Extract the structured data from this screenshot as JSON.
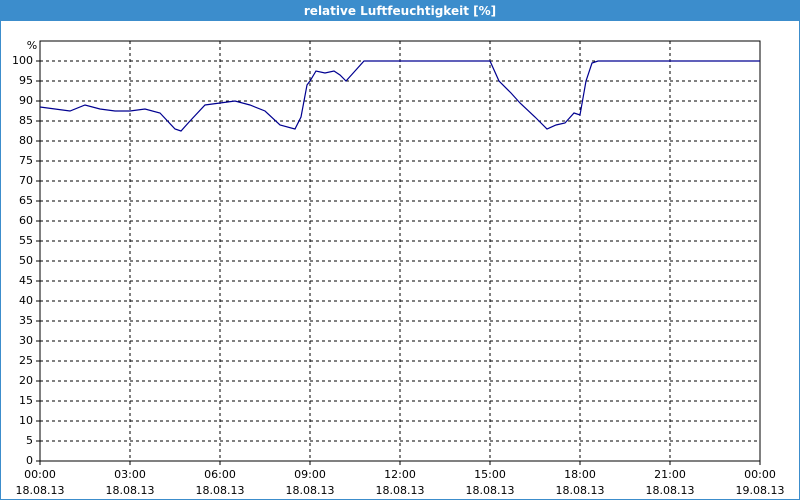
{
  "chart_data": {
    "type": "line",
    "title": "relative Luftfeuchtigkeit [%]",
    "y_unit": "%",
    "color": "#000090",
    "grid": true,
    "x": [
      0,
      0.5,
      1,
      1.5,
      2,
      2.5,
      3,
      3.5,
      4,
      4.5,
      4.7,
      5,
      5.5,
      6,
      6.5,
      7,
      7.5,
      8,
      8.5,
      8.7,
      8.9,
      9,
      9.2,
      9.5,
      9.8,
      10,
      10.2,
      10.5,
      10.8,
      12,
      15,
      15.3,
      15.7,
      16,
      16.5,
      16.9,
      17.2,
      17.5,
      17.8,
      18,
      18.2,
      18.4,
      18.6,
      21,
      24
    ],
    "values": [
      88.5,
      88,
      87.5,
      89,
      88,
      87.5,
      87.5,
      88,
      87,
      83,
      82.5,
      85,
      89,
      89.5,
      90,
      89,
      87.5,
      84,
      83,
      86,
      94,
      95,
      97.5,
      97,
      97.5,
      96.5,
      95,
      97.5,
      100,
      100,
      100,
      95,
      92,
      89.5,
      86,
      83,
      84,
      84.5,
      87,
      86.5,
      95,
      99.5,
      100,
      100,
      100
    ],
    "xlim": [
      0,
      24
    ],
    "xticks": [
      {
        "value": 0,
        "label": "00:00 18.08.13"
      },
      {
        "value": 3,
        "label": "03:00 18.08.13"
      },
      {
        "value": 6,
        "label": "06:00 18.08.13"
      },
      {
        "value": 9,
        "label": "09:00 18.08.13"
      },
      {
        "value": 12,
        "label": "12:00 18.08.13"
      },
      {
        "value": 15,
        "label": "15:00 18.08.13"
      },
      {
        "value": 18,
        "label": "18:00 18.08.13"
      },
      {
        "value": 21,
        "label": "21:00 18.08.13"
      },
      {
        "value": 24,
        "label": "00:00 19.08.13"
      }
    ],
    "ylim": [
      0,
      105
    ],
    "yticks": [
      0,
      5,
      10,
      15,
      20,
      25,
      30,
      35,
      40,
      45,
      50,
      55,
      60,
      65,
      70,
      75,
      80,
      85,
      90,
      95,
      100
    ]
  }
}
